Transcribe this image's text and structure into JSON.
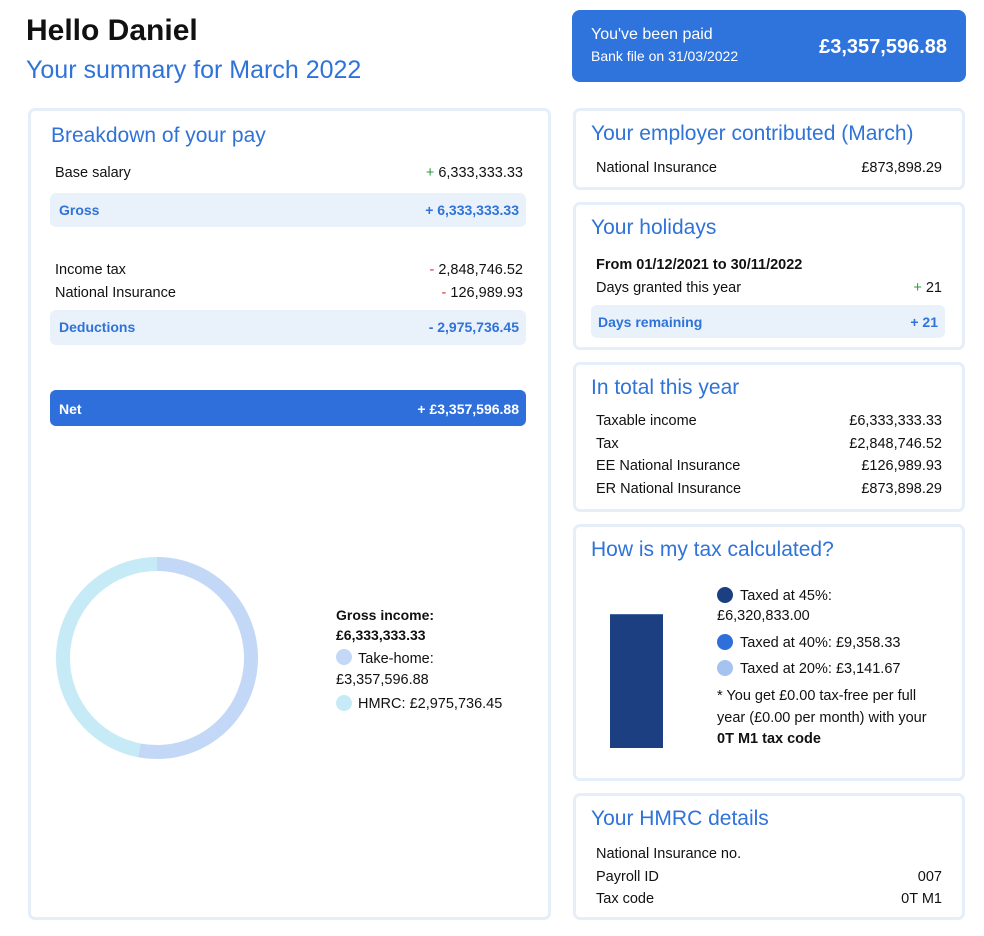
{
  "header": {
    "greeting": "Hello Daniel",
    "subtitle": "Your summary for March 2022"
  },
  "paid": {
    "title": "You've been paid",
    "subtitle": "Bank file on 31/03/2022",
    "amount": "£3,357,596.88"
  },
  "breakdown": {
    "title": "Breakdown of your pay",
    "earnings": [
      {
        "label": "Base salary",
        "sign": "+",
        "amount": "6,333,333.33"
      }
    ],
    "gross": {
      "label": "Gross",
      "amount": "+ 6,333,333.33"
    },
    "deductions": [
      {
        "label": "Income tax",
        "sign": "-",
        "amount": "2,848,746.52"
      },
      {
        "label": "National Insurance",
        "sign": "-",
        "amount": "126,989.93"
      }
    ],
    "deductions_total": {
      "label": "Deductions",
      "amount": "- 2,975,736.45"
    },
    "net": {
      "label": "Net",
      "amount": "+ £3,357,596.88"
    }
  },
  "donut": {
    "title": "Gross income:",
    "total": "£6,333,333.33",
    "series": [
      {
        "name": "Take-home:",
        "value": 3357596.88,
        "value_label": "£3,357,596.88",
        "color": "#c3d8f6"
      },
      {
        "name": "HMRC:",
        "value": 2975736.45,
        "value_label": "£2,975,736.45",
        "color": "#c6ebf6"
      }
    ]
  },
  "employer": {
    "title": "Your employer contributed (March)",
    "rows": [
      {
        "label": "National Insurance",
        "value": "£873,898.29"
      }
    ]
  },
  "holidays": {
    "title": "Your holidays",
    "period": "From 01/12/2021 to 30/11/2022",
    "granted": {
      "label": "Days granted this year",
      "sign": "+",
      "value": "21"
    },
    "remaining": {
      "label": "Days remaining",
      "value": "+ 21"
    }
  },
  "totals": {
    "title": "In total this year",
    "rows": [
      {
        "label": "Taxable income",
        "value": "£6,333,333.33"
      },
      {
        "label": "Tax",
        "value": "£2,848,746.52"
      },
      {
        "label": "EE National Insurance",
        "value": "£126,989.93"
      },
      {
        "label": "ER National Insurance",
        "value": "£873,898.29"
      }
    ]
  },
  "tax": {
    "title": "How is my tax calculated?",
    "bands": [
      {
        "name": "Taxed at 45%:",
        "value": 6320833.0,
        "value_label": "£6,320,833.00",
        "color": "#1b3f80"
      },
      {
        "name": "Taxed at 40%:",
        "value": 9358.33,
        "value_label": "£9,358.33",
        "color": "#2f6fdb"
      },
      {
        "name": "Taxed at 20%:",
        "value": 3141.67,
        "value_label": "£3,141.67",
        "color": "#a4c3f1"
      }
    ],
    "note": "* You get £0.00 tax-free per full year (£0.00 per month) with your",
    "note_bold": "0T M1 tax code"
  },
  "hmrc": {
    "title": "Your HMRC details",
    "rows": [
      {
        "label": "National Insurance no."
      },
      {
        "label": "Payroll ID",
        "value": "007"
      },
      {
        "label": "Tax code",
        "value": "0T M1"
      }
    ]
  }
}
